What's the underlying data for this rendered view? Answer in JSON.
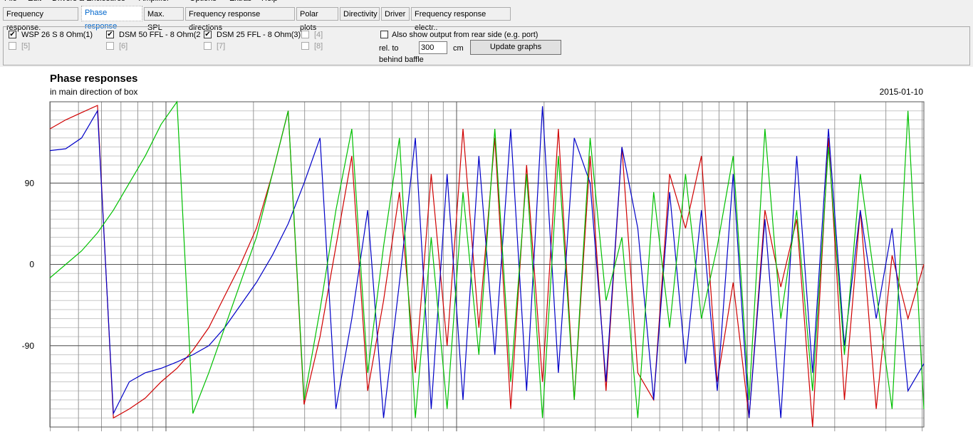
{
  "menu": [
    "File",
    "Edit",
    "Drivers & Enclosures",
    "Amplifier",
    "Options",
    "Extras",
    "Help"
  ],
  "tabs": [
    "Frequency response.",
    "Phase response",
    "Max. SPL",
    "Frequency response directions",
    "Polar plots",
    "Directivity",
    "Driver",
    "Frequency response electr.."
  ],
  "drivers": [
    {
      "label": "WSP 26 S 8 Ohm(1)",
      "checked": true
    },
    {
      "label": "DSM 50 FFL - 8 Ohm(2",
      "checked": true
    },
    {
      "label": "DSM 25 FFL - 8 Ohm(3)",
      "checked": true
    },
    {
      "label": "[4]",
      "checked": false
    },
    {
      "label": "[5]",
      "checked": false
    },
    {
      "label": "[6]",
      "checked": false
    },
    {
      "label": "[7]",
      "checked": false
    },
    {
      "label": "[8]",
      "checked": false
    }
  ],
  "rear_option": {
    "label": "Also show output from rear side (e.g. port)",
    "checked": false
  },
  "rel_label": "rel. to",
  "distance": "300",
  "unit": "cm",
  "behind_label": "behind baffle",
  "update_button": "Update graphs",
  "chart_data": {
    "type": "line",
    "title": "Phase responses",
    "subtitle": "in main direction of box",
    "date": "2015-01-10",
    "ylim": [
      -180,
      180
    ],
    "yticks": [
      -90,
      0,
      90
    ],
    "grid": true,
    "series": [
      {
        "color": "#d00000",
        "values": [
          150,
          160,
          168,
          176,
          -170,
          -160,
          -148,
          -130,
          -115,
          -95,
          -70,
          -35,
          0,
          40,
          100,
          170,
          -155,
          -80,
          20,
          120,
          -140,
          -40,
          80,
          -120,
          100,
          -90,
          150,
          -70,
          140,
          -160,
          110,
          -130,
          150,
          -150,
          120,
          -140,
          130,
          -120,
          -150,
          100,
          40,
          120,
          -130,
          -20,
          -170,
          60,
          -25,
          50,
          -180,
          140,
          -150,
          60,
          -160,
          10,
          -60,
          0
        ]
      },
      {
        "color": "#0000c8",
        "values": [
          126,
          128,
          140,
          170,
          -165,
          -130,
          -120,
          -115,
          -108,
          -100,
          -90,
          -70,
          -45,
          -20,
          10,
          45,
          90,
          140,
          -160,
          -60,
          60,
          -170,
          -20,
          140,
          -160,
          100,
          -150,
          120,
          -100,
          150,
          -140,
          175,
          -120,
          140,
          90,
          -130,
          130,
          40,
          -150,
          80,
          -110,
          60,
          -140,
          100,
          -170,
          50,
          -170,
          120,
          -120,
          150,
          -90,
          60,
          -60,
          40,
          -140,
          -110
        ]
      },
      {
        "color": "#00c000",
        "values": [
          -15,
          0,
          15,
          35,
          60,
          90,
          120,
          155,
          180,
          -165,
          -120,
          -70,
          -20,
          30,
          100,
          170,
          -150,
          -50,
          60,
          150,
          -120,
          20,
          140,
          -170,
          30,
          -160,
          80,
          -100,
          150,
          -130,
          100,
          -170,
          120,
          -150,
          140,
          -40,
          30,
          -170,
          80,
          -70,
          100,
          -60,
          20,
          120,
          -150,
          150,
          -60,
          60,
          -140,
          130,
          -100,
          100,
          -30,
          -160,
          170,
          -160
        ]
      }
    ]
  }
}
